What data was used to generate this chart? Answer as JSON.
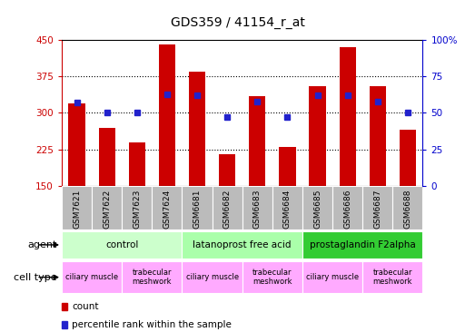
{
  "title": "GDS359 / 41154_r_at",
  "samples": [
    "GSM7621",
    "GSM7622",
    "GSM7623",
    "GSM7624",
    "GSM6681",
    "GSM6682",
    "GSM6683",
    "GSM6684",
    "GSM6685",
    "GSM6686",
    "GSM6687",
    "GSM6688"
  ],
  "counts": [
    320,
    270,
    240,
    440,
    385,
    215,
    335,
    230,
    355,
    435,
    355,
    265
  ],
  "percentiles": [
    57,
    50,
    50,
    63,
    62,
    47,
    58,
    47,
    62,
    62,
    58,
    50
  ],
  "ylim_left": [
    150,
    450
  ],
  "ylim_right": [
    0,
    100
  ],
  "yticks_left": [
    150,
    225,
    300,
    375,
    450
  ],
  "yticks_right": [
    0,
    25,
    50,
    75,
    100
  ],
  "bar_color": "#cc0000",
  "dot_color": "#2222cc",
  "plot_bg": "#ffffff",
  "sample_box_color": "#bbbbbb",
  "agent_groups": [
    {
      "label": "control",
      "start": 0,
      "end": 3,
      "color": "#ccffcc"
    },
    {
      "label": "latanoprost free acid",
      "start": 4,
      "end": 7,
      "color": "#aaffaa"
    },
    {
      "label": "prostaglandin F2alpha",
      "start": 8,
      "end": 11,
      "color": "#33cc33"
    }
  ],
  "cell_type_groups": [
    {
      "label": "ciliary muscle",
      "start": 0,
      "end": 1,
      "color": "#ffaaff"
    },
    {
      "label": "trabecular\nmeshwork",
      "start": 2,
      "end": 3,
      "color": "#ffaaff"
    },
    {
      "label": "ciliary muscle",
      "start": 4,
      "end": 5,
      "color": "#ffaaff"
    },
    {
      "label": "trabecular\nmeshwork",
      "start": 6,
      "end": 7,
      "color": "#ffaaff"
    },
    {
      "label": "ciliary muscle",
      "start": 8,
      "end": 9,
      "color": "#ffaaff"
    },
    {
      "label": "trabecular\nmeshwork",
      "start": 10,
      "end": 11,
      "color": "#ffaaff"
    }
  ],
  "left_axis_color": "#cc0000",
  "right_axis_color": "#0000cc",
  "grid_yticks": [
    225,
    300,
    375
  ],
  "legend_items": [
    {
      "label": "count",
      "color": "#cc0000"
    },
    {
      "label": "percentile rank within the sample",
      "color": "#2222cc"
    }
  ]
}
